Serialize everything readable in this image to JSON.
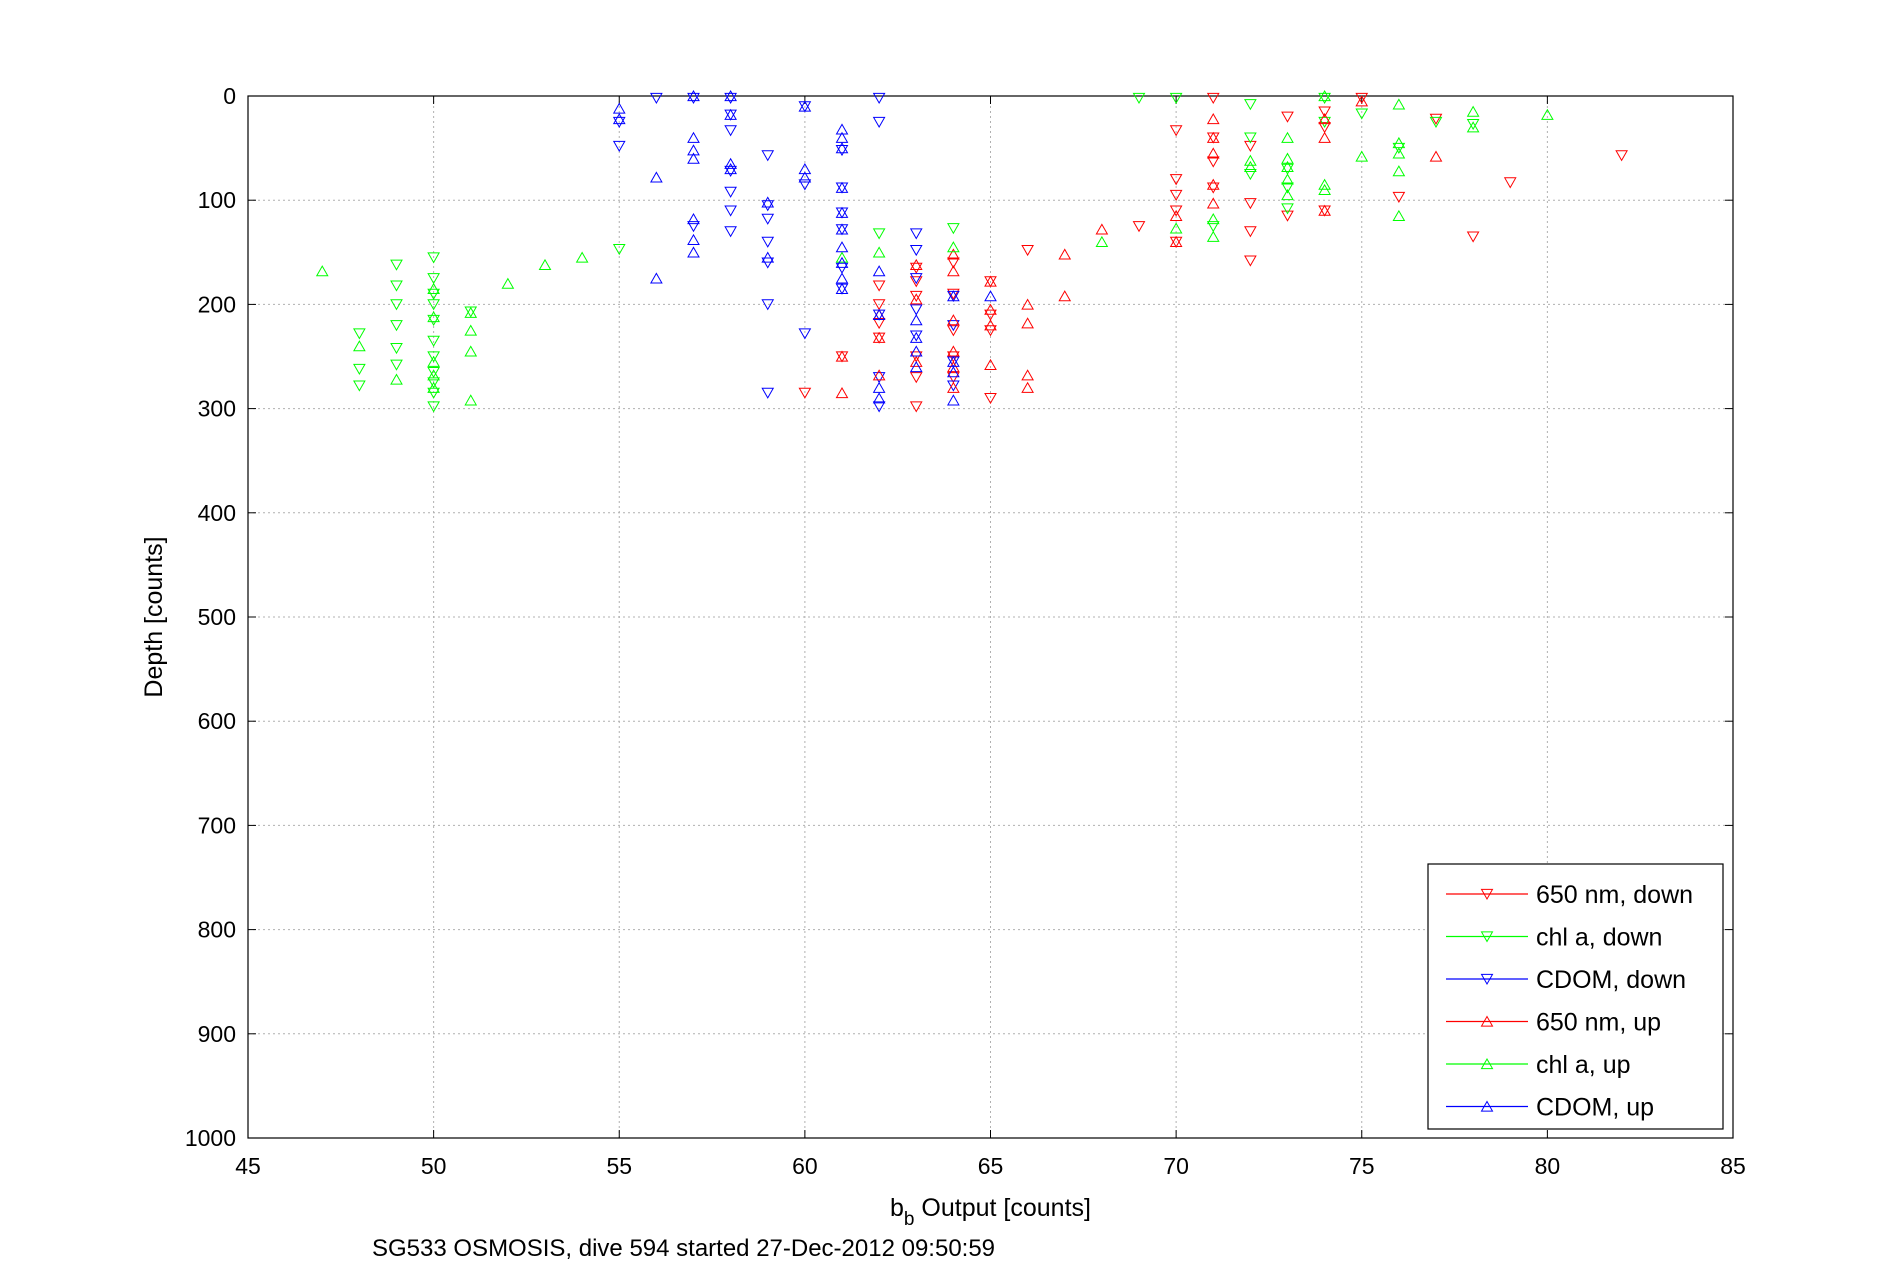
{
  "chart_data": {
    "type": "scatter",
    "title": "",
    "xlabel": "b",
    "xlabel_sub": "b",
    "xlabel_rest": " Output [counts]",
    "ylabel": "Depth [counts]",
    "caption": "SG533 OSMOSIS, dive 594 started 27-Dec-2012 09:50:59",
    "xlim": [
      45,
      85
    ],
    "ylim": [
      0,
      1000
    ],
    "y_reversed": true,
    "grid": true,
    "legend_position": "bottom-right",
    "xticks": [
      "45",
      "50",
      "55",
      "60",
      "65",
      "70",
      "75",
      "80",
      "85"
    ],
    "yticks": [
      "0",
      "100",
      "200",
      "300",
      "400",
      "500",
      "600",
      "700",
      "800",
      "900",
      "1000"
    ],
    "colors": {
      "red": "#ff0000",
      "green": "#00ff00",
      "blue": "#0000ff"
    },
    "series": [
      {
        "name": "650 nm, down",
        "color": "#ff0000",
        "marker": "triangle-down",
        "points": [
          [
            82,
            57
          ],
          [
            79,
            83
          ],
          [
            78,
            135
          ],
          [
            77,
            22
          ],
          [
            76,
            97
          ],
          [
            75,
            2
          ],
          [
            74,
            15
          ],
          [
            74,
            30
          ],
          [
            74,
            110
          ],
          [
            73,
            20
          ],
          [
            73,
            115
          ],
          [
            72,
            48
          ],
          [
            72,
            103
          ],
          [
            72,
            130
          ],
          [
            72,
            158
          ],
          [
            71,
            2
          ],
          [
            71,
            40
          ],
          [
            71,
            63
          ],
          [
            71,
            88
          ],
          [
            70,
            33
          ],
          [
            70,
            80
          ],
          [
            70,
            95
          ],
          [
            70,
            110
          ],
          [
            70,
            140
          ],
          [
            69,
            125
          ],
          [
            66,
            148
          ],
          [
            65,
            178
          ],
          [
            65,
            210
          ],
          [
            65,
            225
          ],
          [
            65,
            290
          ],
          [
            64,
            160
          ],
          [
            64,
            190
          ],
          [
            64,
            225
          ],
          [
            64,
            250
          ],
          [
            64,
            270
          ],
          [
            63,
            165
          ],
          [
            63,
            178
          ],
          [
            63,
            192
          ],
          [
            63,
            250
          ],
          [
            63,
            270
          ],
          [
            63,
            298
          ],
          [
            62,
            182
          ],
          [
            62,
            200
          ],
          [
            62,
            218
          ],
          [
            62,
            232
          ],
          [
            61,
            250
          ],
          [
            60,
            285
          ]
        ]
      },
      {
        "name": "chl a, down",
        "color": "#00ff00",
        "marker": "triangle-down",
        "points": [
          [
            78,
            27
          ],
          [
            77,
            25
          ],
          [
            76,
            50
          ],
          [
            75,
            17
          ],
          [
            74,
            2
          ],
          [
            74,
            25
          ],
          [
            73,
            70
          ],
          [
            73,
            88
          ],
          [
            73,
            108
          ],
          [
            72,
            8
          ],
          [
            72,
            40
          ],
          [
            72,
            75
          ],
          [
            71,
            125
          ],
          [
            70,
            2
          ],
          [
            69,
            2
          ],
          [
            64,
            127
          ],
          [
            62,
            132
          ],
          [
            55,
            147
          ],
          [
            51,
            207
          ],
          [
            50,
            155
          ],
          [
            50,
            175
          ],
          [
            50,
            190
          ],
          [
            50,
            200
          ],
          [
            50,
            215
          ],
          [
            50,
            235
          ],
          [
            50,
            250
          ],
          [
            50,
            265
          ],
          [
            50,
            275
          ],
          [
            50,
            285
          ],
          [
            50,
            298
          ],
          [
            49,
            162
          ],
          [
            49,
            182
          ],
          [
            49,
            200
          ],
          [
            49,
            220
          ],
          [
            49,
            242
          ],
          [
            49,
            258
          ],
          [
            48,
            228
          ],
          [
            48,
            262
          ],
          [
            48,
            278
          ]
        ]
      },
      {
        "name": "CDOM, down",
        "color": "#0000ff",
        "marker": "triangle-down",
        "points": [
          [
            62,
            2
          ],
          [
            62,
            25
          ],
          [
            61,
            52
          ],
          [
            61,
            88
          ],
          [
            61,
            112
          ],
          [
            61,
            128
          ],
          [
            61,
            165
          ],
          [
            61,
            185
          ],
          [
            62,
            210
          ],
          [
            62,
            270
          ],
          [
            62,
            298
          ],
          [
            63,
            132
          ],
          [
            63,
            148
          ],
          [
            63,
            175
          ],
          [
            63,
            205
          ],
          [
            63,
            230
          ],
          [
            64,
            192
          ],
          [
            64,
            220
          ],
          [
            64,
            255
          ],
          [
            64,
            278
          ],
          [
            60,
            10
          ],
          [
            60,
            85
          ],
          [
            60,
            228
          ],
          [
            59,
            57
          ],
          [
            59,
            105
          ],
          [
            59,
            118
          ],
          [
            59,
            140
          ],
          [
            59,
            160
          ],
          [
            59,
            200
          ],
          [
            59,
            285
          ],
          [
            58,
            2
          ],
          [
            58,
            18
          ],
          [
            58,
            33
          ],
          [
            58,
            72
          ],
          [
            58,
            92
          ],
          [
            58,
            110
          ],
          [
            58,
            130
          ],
          [
            57,
            2
          ],
          [
            57,
            125
          ],
          [
            56,
            2
          ],
          [
            55,
            48
          ],
          [
            55,
            25
          ]
        ]
      },
      {
        "name": "650 nm, up",
        "color": "#ff0000",
        "marker": "triangle-up",
        "points": [
          [
            77,
            58
          ],
          [
            75,
            5
          ],
          [
            74,
            40
          ],
          [
            74,
            22
          ],
          [
            74,
            110
          ],
          [
            71,
            22
          ],
          [
            71,
            40
          ],
          [
            71,
            55
          ],
          [
            71,
            85
          ],
          [
            71,
            103
          ],
          [
            70,
            115
          ],
          [
            70,
            140
          ],
          [
            68,
            128
          ],
          [
            67,
            152
          ],
          [
            67,
            192
          ],
          [
            66,
            200
          ],
          [
            66,
            218
          ],
          [
            66,
            268
          ],
          [
            66,
            280
          ],
          [
            65,
            178
          ],
          [
            65,
            205
          ],
          [
            65,
            220
          ],
          [
            65,
            258
          ],
          [
            64,
            152
          ],
          [
            64,
            168
          ],
          [
            64,
            215
          ],
          [
            64,
            245
          ],
          [
            64,
            260
          ],
          [
            64,
            280
          ],
          [
            63,
            162
          ],
          [
            63,
            195
          ],
          [
            63,
            255
          ],
          [
            62,
            210
          ],
          [
            62,
            232
          ],
          [
            62,
            268
          ],
          [
            61,
            250
          ],
          [
            61,
            285
          ]
        ]
      },
      {
        "name": "chl a, up",
        "color": "#00ff00",
        "marker": "triangle-up",
        "points": [
          [
            80,
            18
          ],
          [
            78,
            15
          ],
          [
            78,
            30
          ],
          [
            76,
            8
          ],
          [
            76,
            45
          ],
          [
            76,
            55
          ],
          [
            76,
            72
          ],
          [
            76,
            115
          ],
          [
            75,
            58
          ],
          [
            74,
            0
          ],
          [
            74,
            85
          ],
          [
            74,
            90
          ],
          [
            73,
            40
          ],
          [
            73,
            60
          ],
          [
            73,
            68
          ],
          [
            73,
            80
          ],
          [
            73,
            95
          ],
          [
            72,
            62
          ],
          [
            72,
            68
          ],
          [
            71,
            118
          ],
          [
            71,
            135
          ],
          [
            70,
            127
          ],
          [
            68,
            140
          ],
          [
            64,
            145
          ],
          [
            62,
            150
          ],
          [
            61,
            155
          ],
          [
            54,
            155
          ],
          [
            53,
            162
          ],
          [
            52,
            180
          ],
          [
            51,
            208
          ],
          [
            51,
            225
          ],
          [
            51,
            245
          ],
          [
            51,
            292
          ],
          [
            50,
            185
          ],
          [
            50,
            212
          ],
          [
            50,
            255
          ],
          [
            50,
            268
          ],
          [
            50,
            280
          ],
          [
            49,
            272
          ],
          [
            48,
            240
          ],
          [
            47,
            168
          ]
        ]
      },
      {
        "name": "CDOM, up",
        "color": "#0000ff",
        "marker": "triangle-up",
        "points": [
          [
            65,
            192
          ],
          [
            64,
            192
          ],
          [
            64,
            255
          ],
          [
            64,
            265
          ],
          [
            64,
            292
          ],
          [
            63,
            215
          ],
          [
            63,
            232
          ],
          [
            63,
            245
          ],
          [
            63,
            260
          ],
          [
            62,
            168
          ],
          [
            62,
            210
          ],
          [
            62,
            280
          ],
          [
            62,
            290
          ],
          [
            61,
            32
          ],
          [
            61,
            40
          ],
          [
            61,
            50
          ],
          [
            61,
            88
          ],
          [
            61,
            112
          ],
          [
            61,
            128
          ],
          [
            61,
            145
          ],
          [
            61,
            160
          ],
          [
            61,
            175
          ],
          [
            61,
            185
          ],
          [
            60,
            10
          ],
          [
            60,
            70
          ],
          [
            60,
            78
          ],
          [
            59,
            102
          ],
          [
            59,
            155
          ],
          [
            58,
            0
          ],
          [
            58,
            18
          ],
          [
            58,
            65
          ],
          [
            58,
            70
          ],
          [
            57,
            0
          ],
          [
            57,
            40
          ],
          [
            57,
            52
          ],
          [
            57,
            60
          ],
          [
            57,
            118
          ],
          [
            57,
            138
          ],
          [
            57,
            150
          ],
          [
            56,
            78
          ],
          [
            56,
            175
          ],
          [
            55,
            12
          ],
          [
            55,
            22
          ]
        ]
      }
    ]
  }
}
